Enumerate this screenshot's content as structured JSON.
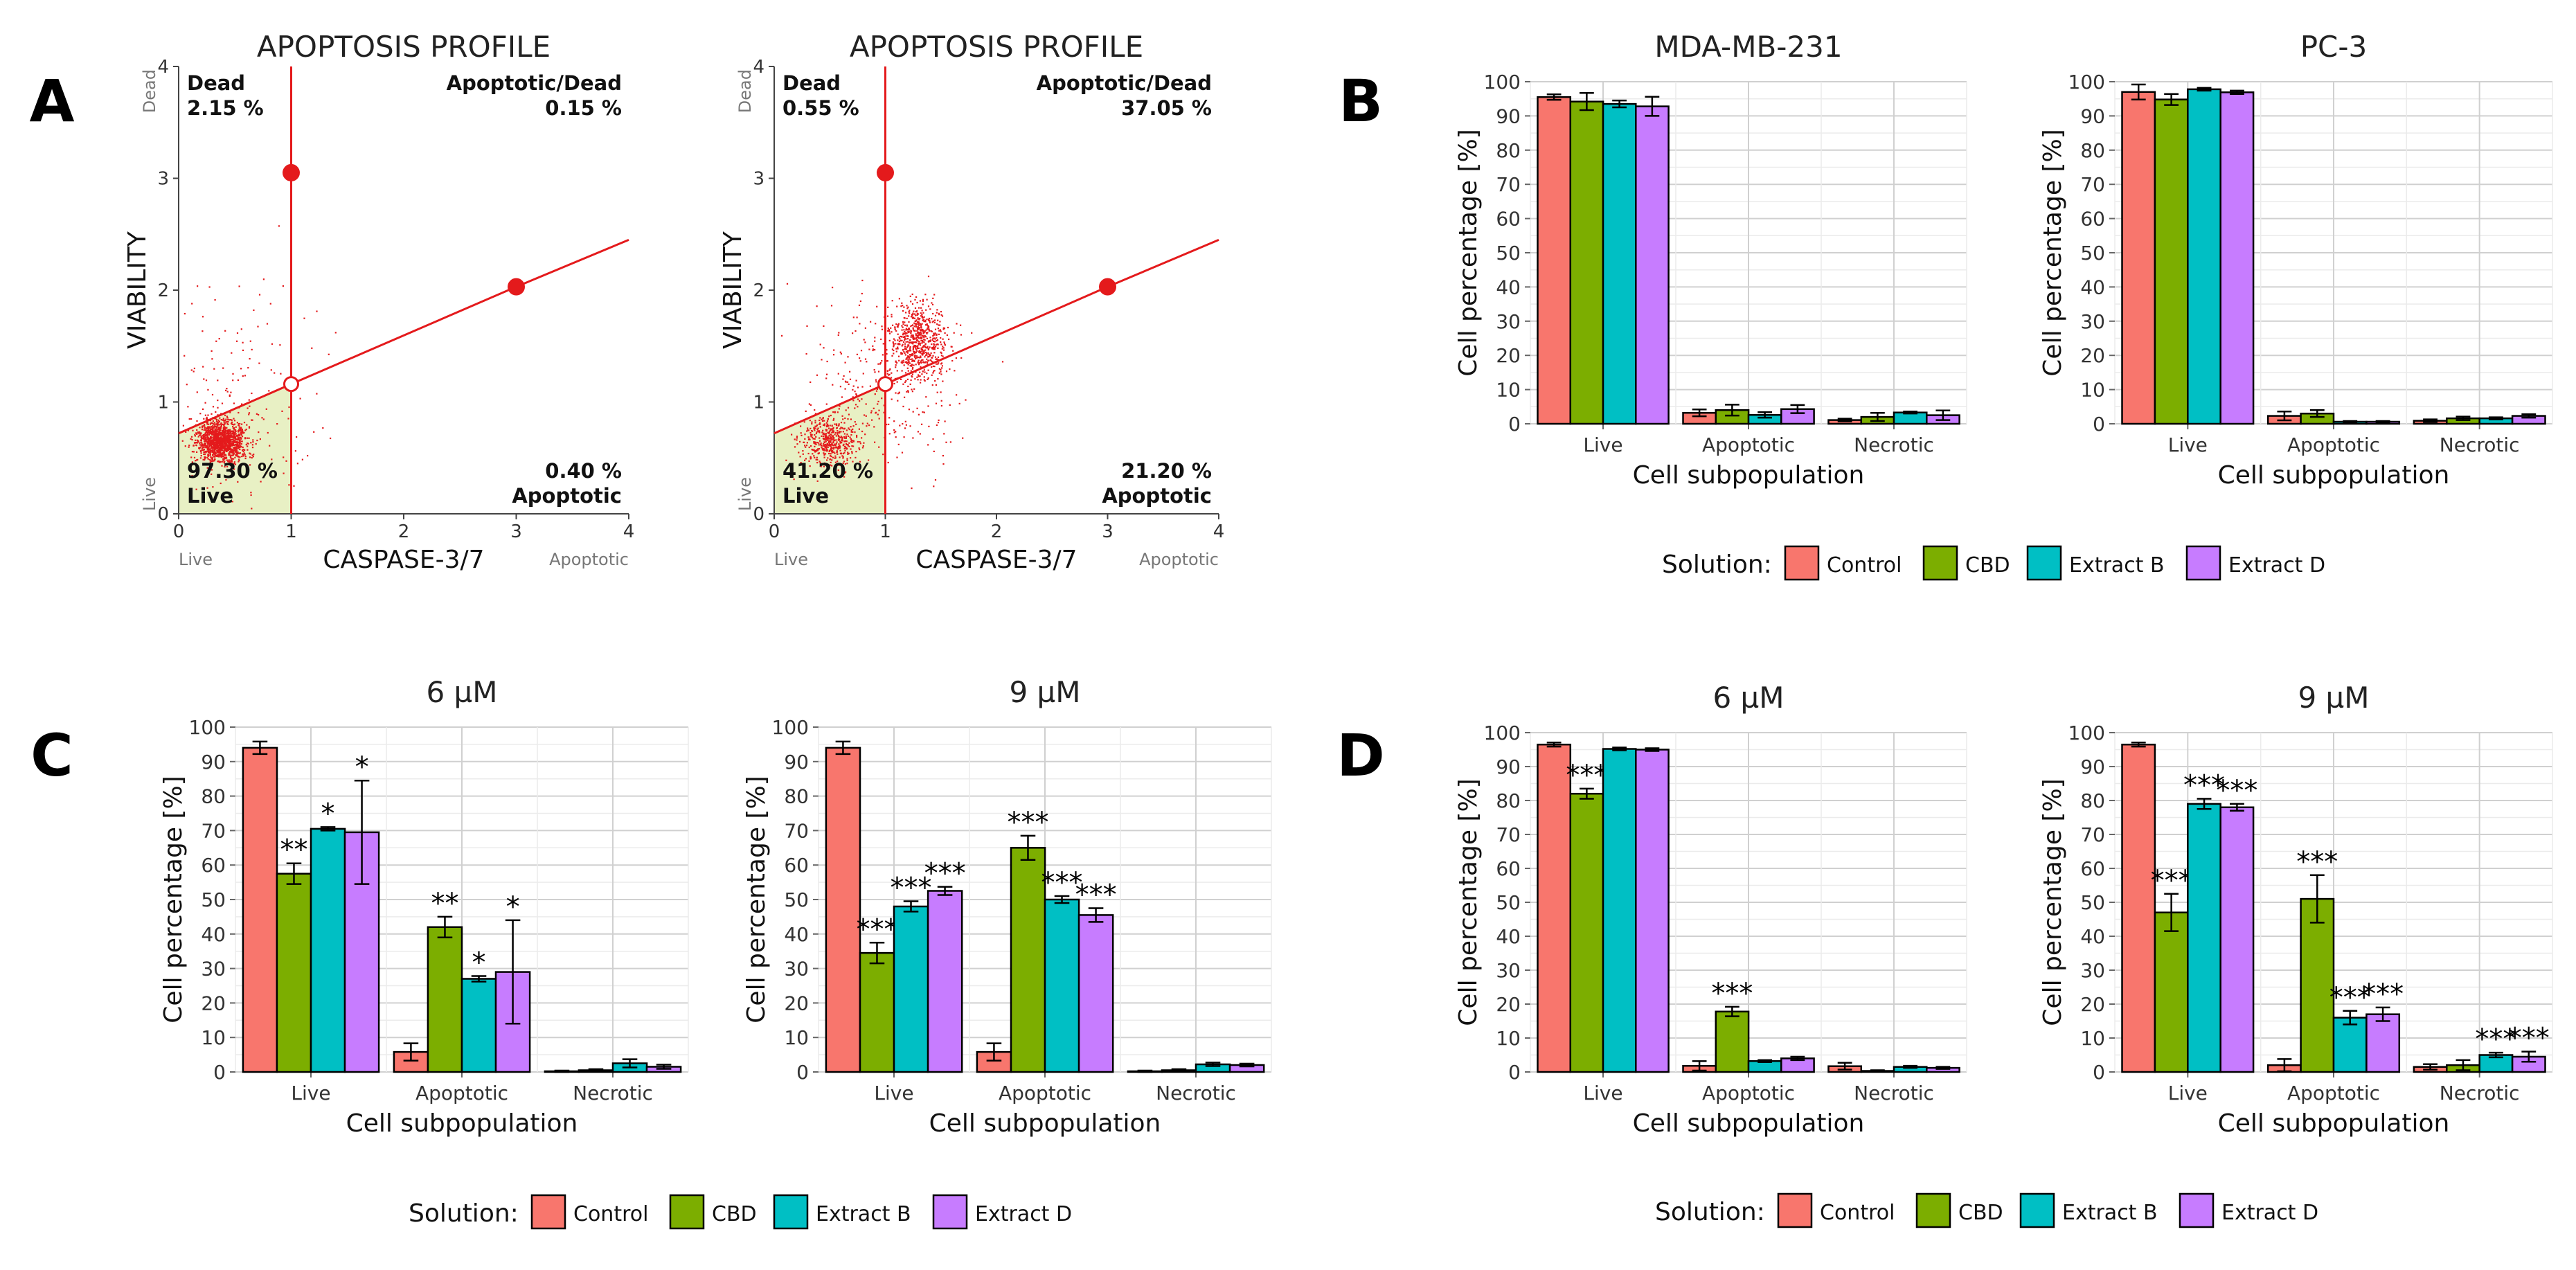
{
  "figure": {
    "panel_letters": [
      "A",
      "B",
      "C",
      "D"
    ],
    "colors": {
      "Control": "#F8766D",
      "CBD": "#7CAE00",
      "Extract B": "#00BFC4",
      "Extract D": "#C77CFF",
      "flow": "#e41a1c",
      "gate_fill": "#e8f0c4"
    }
  },
  "chart_data": [
    {
      "id": "A1",
      "type": "scatter",
      "title": "APOPTOSIS PROFILE",
      "xlabel": "CASPASE-3/7",
      "ylabel": "VIABILITY",
      "xlim": [
        0,
        4
      ],
      "ylim": [
        0,
        4
      ],
      "xticks": [
        "0",
        "1",
        "2",
        "3",
        "4"
      ],
      "yticks": [
        "0",
        "1",
        "2",
        "3",
        "4"
      ],
      "x_end_labels": [
        "Live",
        "Apoptotic"
      ],
      "y_end_labels": [
        "Live",
        "Dead"
      ],
      "quadrants": {
        "dead": [
          "Dead",
          "2.15 %"
        ],
        "apoptotic_dead": [
          "Apoptotic/Dead",
          "0.15 %"
        ],
        "live": [
          "97.30 %",
          "Live"
        ],
        "apoptotic": [
          "0.40 %",
          "Apoptotic"
        ]
      },
      "gate": {
        "vertical_x": 1.0,
        "line_points": [
          [
            0,
            0.72
          ],
          [
            1.0,
            1.16
          ],
          [
            3.0,
            2.03
          ],
          [
            4,
            2.45
          ]
        ],
        "handles": [
          [
            1.0,
            3.05
          ],
          [
            3.0,
            2.03
          ],
          [
            1.0,
            1.16
          ]
        ]
      },
      "clusters": [
        {
          "cx": 0.38,
          "cy": 0.65,
          "sx": 0.11,
          "sy": 0.09,
          "n": 1400
        },
        {
          "cx": 0.5,
          "cy": 0.9,
          "sx": 0.35,
          "sy": 0.5,
          "n": 180
        }
      ]
    },
    {
      "id": "A2",
      "type": "scatter",
      "title": "APOPTOSIS PROFILE",
      "xlabel": "CASPASE-3/7",
      "ylabel": "VIABILITY",
      "xlim": [
        0,
        4
      ],
      "ylim": [
        0,
        4
      ],
      "xticks": [
        "0",
        "1",
        "2",
        "3",
        "4"
      ],
      "yticks": [
        "0",
        "1",
        "2",
        "3",
        "4"
      ],
      "x_end_labels": [
        "Live",
        "Apoptotic"
      ],
      "y_end_labels": [
        "Live",
        "Dead"
      ],
      "quadrants": {
        "dead": [
          "Dead",
          "0.55 %"
        ],
        "apoptotic_dead": [
          "Apoptotic/Dead",
          "37.05 %"
        ],
        "live": [
          "41.20 %",
          "Live"
        ],
        "apoptotic": [
          "21.20 %",
          "Apoptotic"
        ]
      },
      "gate": {
        "vertical_x": 1.0,
        "line_points": [
          [
            0,
            0.72
          ],
          [
            1.0,
            1.16
          ],
          [
            3.0,
            2.03
          ],
          [
            4,
            2.45
          ]
        ],
        "handles": [
          [
            1.0,
            3.05
          ],
          [
            3.0,
            2.03
          ],
          [
            1.0,
            1.16
          ]
        ]
      },
      "clusters": [
        {
          "cx": 0.5,
          "cy": 0.65,
          "sx": 0.14,
          "sy": 0.11,
          "n": 500
        },
        {
          "cx": 1.3,
          "cy": 1.55,
          "sx": 0.13,
          "sy": 0.17,
          "n": 650
        },
        {
          "cx": 1.0,
          "cy": 1.2,
          "sx": 0.35,
          "sy": 0.4,
          "n": 300
        }
      ]
    },
    {
      "id": "B1",
      "type": "bar",
      "title": "MDA-MB-231",
      "xlabel": "Cell subpopulation",
      "ylabel": "Cell percentage [%]",
      "ylim": [
        0,
        100
      ],
      "yticks": [
        0,
        10,
        20,
        30,
        40,
        50,
        60,
        70,
        80,
        90,
        100
      ],
      "categories": [
        "Live",
        "Apoptotic",
        "Necrotic"
      ],
      "series": [
        {
          "name": "Control",
          "values": [
            95.5,
            3.2,
            1.1
          ],
          "errors": [
            0.8,
            1.0,
            0.4
          ]
        },
        {
          "name": "CBD",
          "values": [
            94.2,
            4.0,
            2.0
          ],
          "errors": [
            2.5,
            1.6,
            1.2
          ]
        },
        {
          "name": "Extract B",
          "values": [
            93.5,
            2.6,
            3.3
          ],
          "errors": [
            1.0,
            0.8,
            0.3
          ]
        },
        {
          "name": "Extract D",
          "values": [
            92.8,
            4.3,
            2.5
          ],
          "errors": [
            2.8,
            1.2,
            1.4
          ]
        }
      ],
      "stars": [
        [
          "",
          "",
          "",
          ""
        ],
        [
          "",
          "",
          "",
          ""
        ],
        [
          "",
          "",
          "",
          ""
        ]
      ]
    },
    {
      "id": "B2",
      "type": "bar",
      "title": "PC-3",
      "xlabel": "Cell subpopulation",
      "ylabel": "Cell percentage [%]",
      "ylim": [
        0,
        100
      ],
      "yticks": [
        0,
        10,
        20,
        30,
        40,
        50,
        60,
        70,
        80,
        90,
        100
      ],
      "categories": [
        "Live",
        "Apoptotic",
        "Necrotic"
      ],
      "series": [
        {
          "name": "Control",
          "values": [
            97.0,
            2.3,
            0.9
          ],
          "errors": [
            2.2,
            1.3,
            0.4
          ]
        },
        {
          "name": "CBD",
          "values": [
            94.8,
            3.0,
            1.6
          ],
          "errors": [
            1.6,
            1.0,
            0.5
          ]
        },
        {
          "name": "Extract B",
          "values": [
            97.8,
            0.6,
            1.6
          ],
          "errors": [
            0.4,
            0.2,
            0.3
          ]
        },
        {
          "name": "Extract D",
          "values": [
            96.9,
            0.6,
            2.3
          ],
          "errors": [
            0.5,
            0.2,
            0.5
          ]
        }
      ],
      "stars": [
        [
          "",
          "",
          "",
          ""
        ],
        [
          "",
          "",
          "",
          ""
        ],
        [
          "",
          "",
          "",
          ""
        ]
      ]
    },
    {
      "id": "C1",
      "type": "bar",
      "title": "6 µM",
      "xlabel": "Cell subpopulation",
      "ylabel": "Cell percentage [%]",
      "ylim": [
        0,
        100
      ],
      "yticks": [
        0,
        10,
        20,
        30,
        40,
        50,
        60,
        70,
        80,
        90,
        100
      ],
      "categories": [
        "Live",
        "Apoptotic",
        "Necrotic"
      ],
      "series": [
        {
          "name": "Control",
          "values": [
            94.0,
            5.8,
            0.2
          ],
          "errors": [
            1.8,
            2.5,
            0.2
          ]
        },
        {
          "name": "CBD",
          "values": [
            57.5,
            42.0,
            0.5
          ],
          "errors": [
            3.0,
            3.0,
            0.3
          ]
        },
        {
          "name": "Extract B",
          "values": [
            70.5,
            27.0,
            2.5
          ],
          "errors": [
            0.5,
            0.8,
            1.2
          ]
        },
        {
          "name": "Extract D",
          "values": [
            69.5,
            29.0,
            1.5
          ],
          "errors": [
            15.0,
            15.0,
            0.6
          ]
        }
      ],
      "stars": [
        [
          "",
          "**",
          "*",
          "*"
        ],
        [
          "",
          "**",
          "*",
          "*"
        ],
        [
          "",
          "",
          "",
          ""
        ]
      ]
    },
    {
      "id": "C2",
      "type": "bar",
      "title": "9 µM",
      "xlabel": "Cell subpopulation",
      "ylabel": "Cell percentage [%]",
      "ylim": [
        0,
        100
      ],
      "yticks": [
        0,
        10,
        20,
        30,
        40,
        50,
        60,
        70,
        80,
        90,
        100
      ],
      "categories": [
        "Live",
        "Apoptotic",
        "Necrotic"
      ],
      "series": [
        {
          "name": "Control",
          "values": [
            94.0,
            5.8,
            0.2
          ],
          "errors": [
            1.8,
            2.5,
            0.2
          ]
        },
        {
          "name": "CBD",
          "values": [
            34.5,
            65.0,
            0.5
          ],
          "errors": [
            3.0,
            3.5,
            0.3
          ]
        },
        {
          "name": "Extract B",
          "values": [
            48.0,
            50.0,
            2.2
          ],
          "errors": [
            1.5,
            1.0,
            0.5
          ]
        },
        {
          "name": "Extract D",
          "values": [
            52.5,
            45.5,
            2.0
          ],
          "errors": [
            1.2,
            2.0,
            0.4
          ]
        }
      ],
      "stars": [
        [
          "",
          "***",
          "***",
          "***"
        ],
        [
          "",
          "***",
          "***",
          "***"
        ],
        [
          "",
          "",
          "",
          ""
        ]
      ]
    },
    {
      "id": "D1",
      "type": "bar",
      "title": "6 µM",
      "xlabel": "Cell subpopulation",
      "ylabel": "Cell percentage [%]",
      "ylim": [
        0,
        100
      ],
      "yticks": [
        0,
        10,
        20,
        30,
        40,
        50,
        60,
        70,
        80,
        90,
        100
      ],
      "categories": [
        "Live",
        "Apoptotic",
        "Necrotic"
      ],
      "series": [
        {
          "name": "Control",
          "values": [
            96.5,
            1.8,
            1.7
          ],
          "errors": [
            0.6,
            1.4,
            1.0
          ]
        },
        {
          "name": "CBD",
          "values": [
            82.0,
            17.8,
            0.3
          ],
          "errors": [
            1.5,
            1.4,
            0.2
          ]
        },
        {
          "name": "Extract B",
          "values": [
            95.2,
            3.2,
            1.5
          ],
          "errors": [
            0.4,
            0.3,
            0.3
          ]
        },
        {
          "name": "Extract D",
          "values": [
            95.0,
            4.0,
            1.2
          ],
          "errors": [
            0.4,
            0.5,
            0.3
          ]
        }
      ],
      "stars": [
        [
          "",
          "***",
          "",
          ""
        ],
        [
          "",
          "***",
          "",
          ""
        ],
        [
          "",
          "",
          "",
          ""
        ]
      ]
    },
    {
      "id": "D2",
      "type": "bar",
      "title": "9 µM",
      "xlabel": "Cell subpopulation",
      "ylabel": "Cell percentage [%]",
      "ylim": [
        0,
        100
      ],
      "yticks": [
        0,
        10,
        20,
        30,
        40,
        50,
        60,
        70,
        80,
        90,
        100
      ],
      "categories": [
        "Live",
        "Apoptotic",
        "Necrotic"
      ],
      "series": [
        {
          "name": "Control",
          "values": [
            96.5,
            2.0,
            1.5
          ],
          "errors": [
            0.6,
            1.8,
            0.8
          ]
        },
        {
          "name": "CBD",
          "values": [
            47.0,
            51.0,
            2.0
          ],
          "errors": [
            5.5,
            7.0,
            1.5
          ]
        },
        {
          "name": "Extract B",
          "values": [
            79.0,
            16.0,
            5.0
          ],
          "errors": [
            1.5,
            2.0,
            0.7
          ]
        },
        {
          "name": "Extract D",
          "values": [
            78.0,
            17.0,
            4.5
          ],
          "errors": [
            1.0,
            2.0,
            1.5
          ]
        }
      ],
      "stars": [
        [
          "",
          "***",
          "***",
          "***"
        ],
        [
          "",
          "***",
          "***",
          "***"
        ],
        [
          "",
          "",
          "***",
          "***"
        ]
      ]
    }
  ],
  "legends": [
    {
      "title": "Solution:",
      "items": [
        "Control",
        "CBD",
        "Extract B",
        "Extract D"
      ]
    },
    {
      "title": "Solution:",
      "items": [
        "Control",
        "CBD",
        "Extract B",
        "Extract D"
      ]
    },
    {
      "title": "Solution:",
      "items": [
        "Control",
        "CBD",
        "Extract B",
        "Extract D"
      ]
    }
  ]
}
